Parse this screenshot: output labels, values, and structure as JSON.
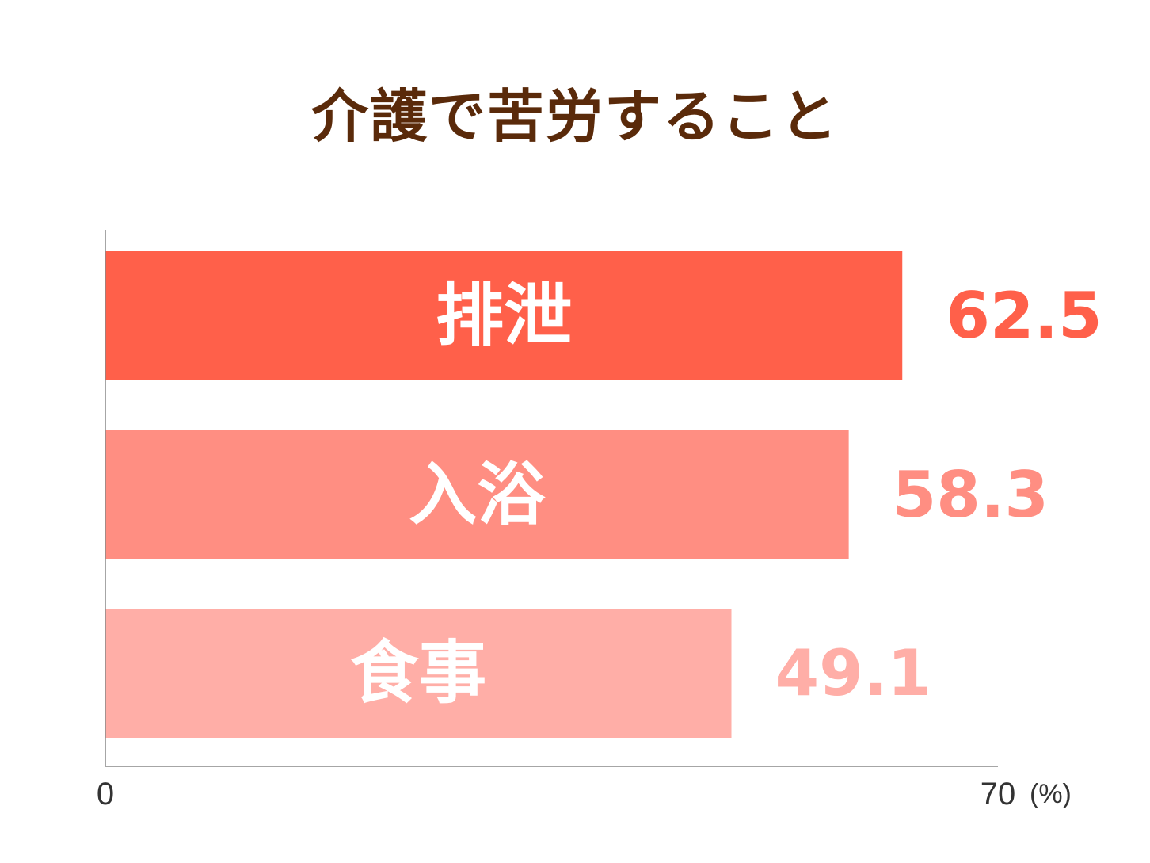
{
  "chart_data": {
    "type": "bar",
    "orientation": "horizontal",
    "title": "介護で苦労すること",
    "categories": [
      "排泄",
      "入浴",
      "食事"
    ],
    "values": [
      62.5,
      58.3,
      49.1
    ],
    "value_labels": [
      "62.5",
      "58.3",
      "49.1"
    ],
    "xlim": [
      0,
      70
    ],
    "x_ticks": [
      "0",
      "70"
    ],
    "unit": "(%)",
    "grid": false,
    "colors": {
      "bars": [
        "#ff604a",
        "#ff8e82",
        "#ffaea7"
      ],
      "value_text": [
        "#ff604a",
        "#ff8e82",
        "#ffaea7"
      ],
      "title": "#5a2a0a",
      "axis": "#888888"
    }
  }
}
